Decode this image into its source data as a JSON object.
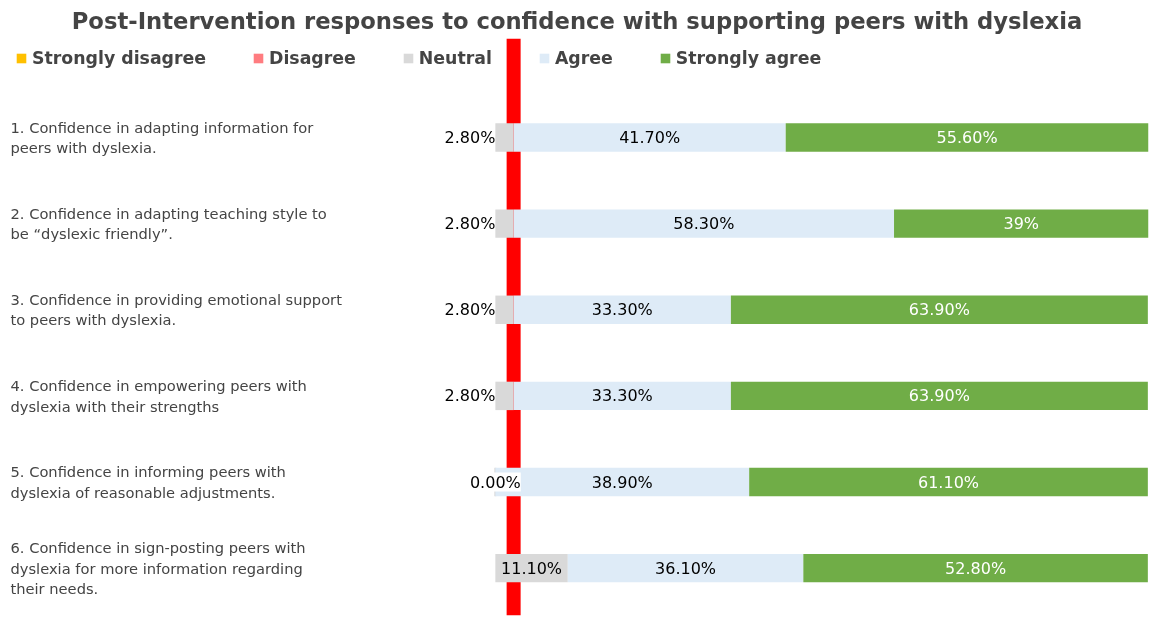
{
  "chart_data": {
    "type": "bar",
    "orientation": "horizontal",
    "stacked": true,
    "title": "Post-Intervention responses to confidence with supporting peers with dyslexia",
    "categories": [
      "1. Confidence in adapting information for peers with dyslexia.",
      "2. Confidence in adapting teaching style to be “dyslexic friendly”.",
      "3. Confidence in providing emotional support to peers with dyslexia.",
      "4. Confidence in empowering peers with dyslexia with their strengths",
      "5. Confidence in informing peers with dyslexia of reasonable adjustments.",
      "6. Confidence in sign-posting peers with dyslexia for more information regarding their needs."
    ],
    "series": [
      {
        "name": "Strongly disagree",
        "color": "#ffc000",
        "values": [
          0,
          0,
          0,
          0,
          0,
          0
        ],
        "value_labels": [
          null,
          null,
          null,
          null,
          null,
          null
        ]
      },
      {
        "name": "Disagree",
        "color": "#ff7c80",
        "values": [
          0,
          0,
          0,
          0,
          0,
          0
        ],
        "value_labels": [
          null,
          null,
          null,
          null,
          null,
          null
        ]
      },
      {
        "name": "Neutral",
        "color": "#d9d9d9",
        "values": [
          2.8,
          2.8,
          2.8,
          2.8,
          0,
          11.1
        ],
        "value_labels": [
          "2.80%",
          "2.80%",
          "2.80%",
          "2.80%",
          "0.00%",
          "11.10%"
        ]
      },
      {
        "name": "Agree",
        "color": "#deebf7",
        "values": [
          41.7,
          58.3,
          33.3,
          33.3,
          38.9,
          36.1
        ],
        "value_labels": [
          "41.70%",
          "58.30%",
          "33.30%",
          "33.30%",
          "38.90%",
          "36.10%"
        ]
      },
      {
        "name": "Strongly agree",
        "color": "#70ad47",
        "values": [
          55.6,
          39,
          63.9,
          63.9,
          61.1,
          52.8
        ],
        "value_labels": [
          "55.60%",
          "39%",
          "63.90%",
          "63.90%",
          "61.10%",
          "52.80%"
        ]
      }
    ],
    "ref_lines": [
      {
        "axis": "x",
        "value": 2.8,
        "label": null,
        "color": "#ff0000"
      }
    ],
    "legend": "top",
    "grid": false
  }
}
